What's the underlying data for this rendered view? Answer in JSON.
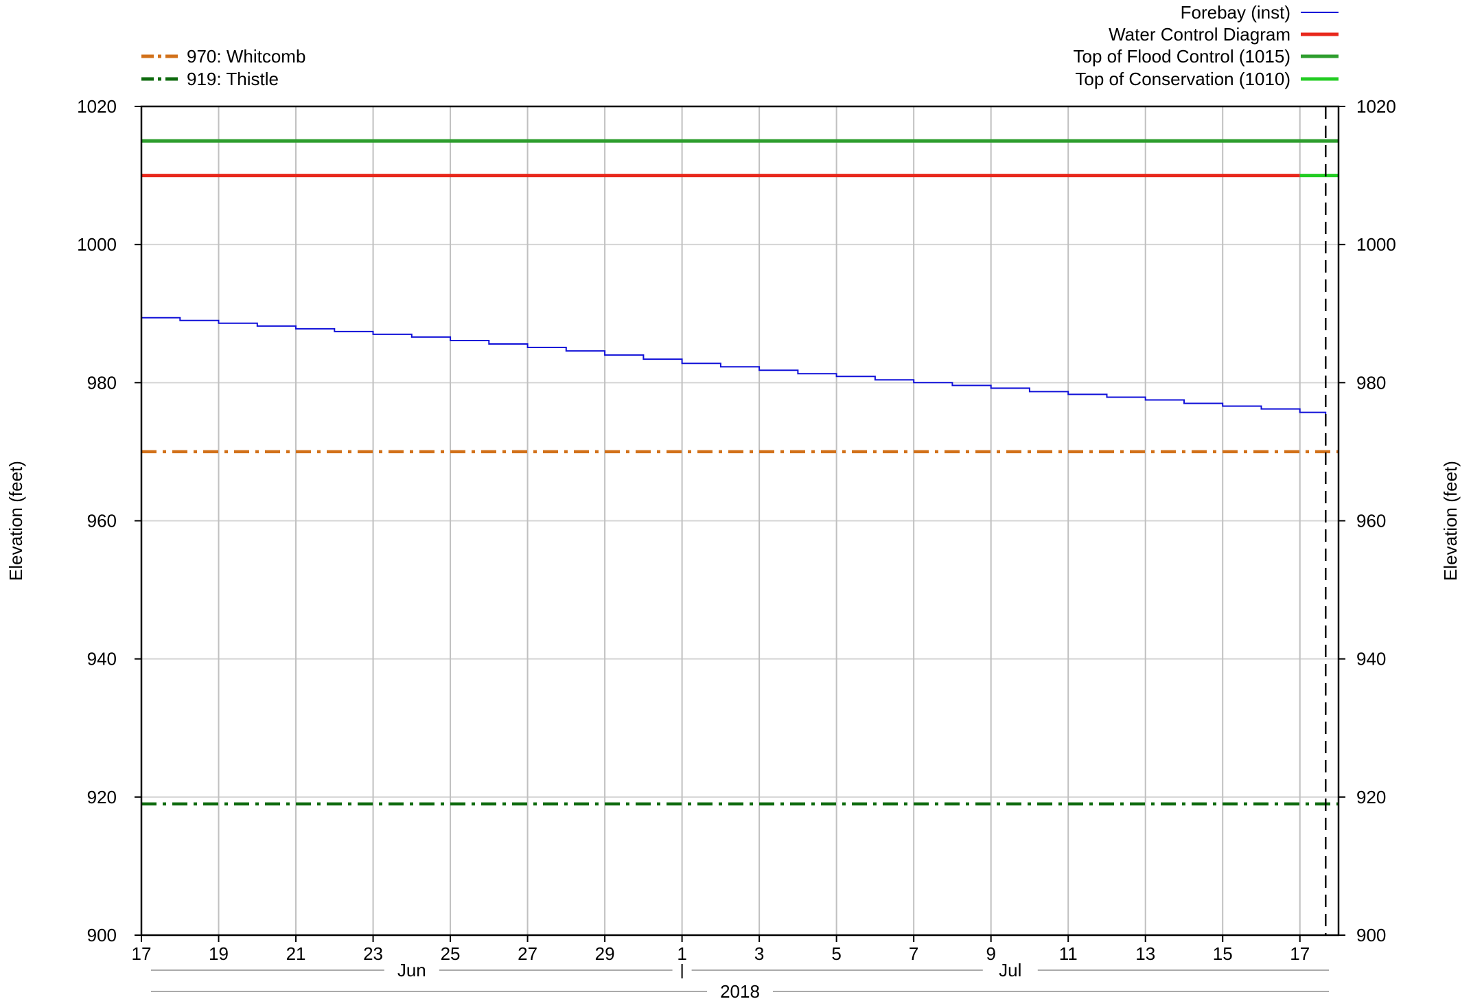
{
  "chart_data": {
    "type": "line",
    "title": "",
    "xlabel": "",
    "ylabel_left": "Elevation (feet)",
    "ylabel_right": "Elevation (feet)",
    "ylim": [
      900,
      1020
    ],
    "y_ticks": [
      900,
      920,
      940,
      960,
      980,
      1000,
      1020
    ],
    "xlim": [
      "2018-06-17",
      "2018-07-18"
    ],
    "x_ticks": [
      {
        "date": "2018-06-17",
        "label": "17"
      },
      {
        "date": "2018-06-19",
        "label": "19"
      },
      {
        "date": "2018-06-21",
        "label": "21"
      },
      {
        "date": "2018-06-23",
        "label": "23"
      },
      {
        "date": "2018-06-25",
        "label": "25"
      },
      {
        "date": "2018-06-27",
        "label": "27"
      },
      {
        "date": "2018-06-29",
        "label": "29"
      },
      {
        "date": "2018-07-01",
        "label": "1"
      },
      {
        "date": "2018-07-03",
        "label": "3"
      },
      {
        "date": "2018-07-05",
        "label": "5"
      },
      {
        "date": "2018-07-07",
        "label": "7"
      },
      {
        "date": "2018-07-09",
        "label": "9"
      },
      {
        "date": "2018-07-11",
        "label": "11"
      },
      {
        "date": "2018-07-13",
        "label": "13"
      },
      {
        "date": "2018-07-15",
        "label": "15"
      },
      {
        "date": "2018-07-17",
        "label": "17"
      }
    ],
    "month_labels": [
      {
        "label": "Jun",
        "start": "2018-06-17",
        "end": "2018-07-01"
      },
      {
        "label": "Jul",
        "start": "2018-07-01",
        "end": "2018-07-18"
      }
    ],
    "year_label": "2018",
    "current_time_marker": "2018-07-17 16:00",
    "grid": true,
    "colors": {
      "forebay": "#1010d8",
      "wcd": "#e8281c",
      "flood": "#2e9e2e",
      "conservation": "#22cc22",
      "whitcomb": "#d2711a",
      "thistle": "#0d6a0d"
    },
    "series": [
      {
        "name": "Forebay (inst)",
        "style": "solid",
        "color_key": "forebay",
        "points": [
          [
            "2018-06-17",
            989.4
          ],
          [
            "2018-06-18",
            989.0
          ],
          [
            "2018-06-19",
            988.6
          ],
          [
            "2018-06-20",
            988.2
          ],
          [
            "2018-06-21",
            987.8
          ],
          [
            "2018-06-22",
            987.4
          ],
          [
            "2018-06-23",
            987.0
          ],
          [
            "2018-06-24",
            986.6
          ],
          [
            "2018-06-25",
            986.1
          ],
          [
            "2018-06-26",
            985.6
          ],
          [
            "2018-06-27",
            985.1
          ],
          [
            "2018-06-28",
            984.6
          ],
          [
            "2018-06-29",
            984.0
          ],
          [
            "2018-06-30",
            983.4
          ],
          [
            "2018-07-01",
            982.8
          ],
          [
            "2018-07-02",
            982.3
          ],
          [
            "2018-07-03",
            981.8
          ],
          [
            "2018-07-04",
            981.3
          ],
          [
            "2018-07-05",
            980.9
          ],
          [
            "2018-07-06",
            980.4
          ],
          [
            "2018-07-07",
            980.0
          ],
          [
            "2018-07-08",
            979.6
          ],
          [
            "2018-07-09",
            979.2
          ],
          [
            "2018-07-10",
            978.7
          ],
          [
            "2018-07-11",
            978.3
          ],
          [
            "2018-07-12",
            977.9
          ],
          [
            "2018-07-13",
            977.5
          ],
          [
            "2018-07-14",
            977.0
          ],
          [
            "2018-07-15",
            976.6
          ],
          [
            "2018-07-16",
            976.2
          ],
          [
            "2018-07-17",
            975.7
          ],
          [
            "2018-07-17 16:00",
            975.3
          ]
        ]
      },
      {
        "name": "Water Control Diagram",
        "style": "thick",
        "color_key": "wcd",
        "points": [
          [
            "2018-06-17",
            1010
          ],
          [
            "2018-07-17",
            1010
          ]
        ]
      },
      {
        "name": "Top of Flood Control (1015)",
        "style": "thick",
        "color_key": "flood",
        "points": [
          [
            "2018-06-17",
            1015
          ],
          [
            "2018-07-18",
            1015
          ]
        ]
      },
      {
        "name": "Top of Conservation (1010)",
        "style": "thick",
        "color_key": "conservation",
        "points": [
          [
            "2018-07-17",
            1010
          ],
          [
            "2018-07-18",
            1010
          ]
        ]
      },
      {
        "name": "970: Whitcomb",
        "style": "dashdot",
        "color_key": "whitcomb",
        "points": [
          [
            "2018-06-17",
            970
          ],
          [
            "2018-07-18",
            970
          ]
        ]
      },
      {
        "name": "919: Thistle",
        "style": "dashdot",
        "color_key": "thistle",
        "points": [
          [
            "2018-06-17",
            919
          ],
          [
            "2018-07-18",
            919
          ]
        ]
      }
    ],
    "legend_left": [
      "970: Whitcomb",
      "919: Thistle"
    ],
    "legend_right": [
      "Forebay (inst)",
      "Water Control Diagram",
      "Top of Flood Control (1015)",
      "Top of Conservation (1010)"
    ]
  }
}
